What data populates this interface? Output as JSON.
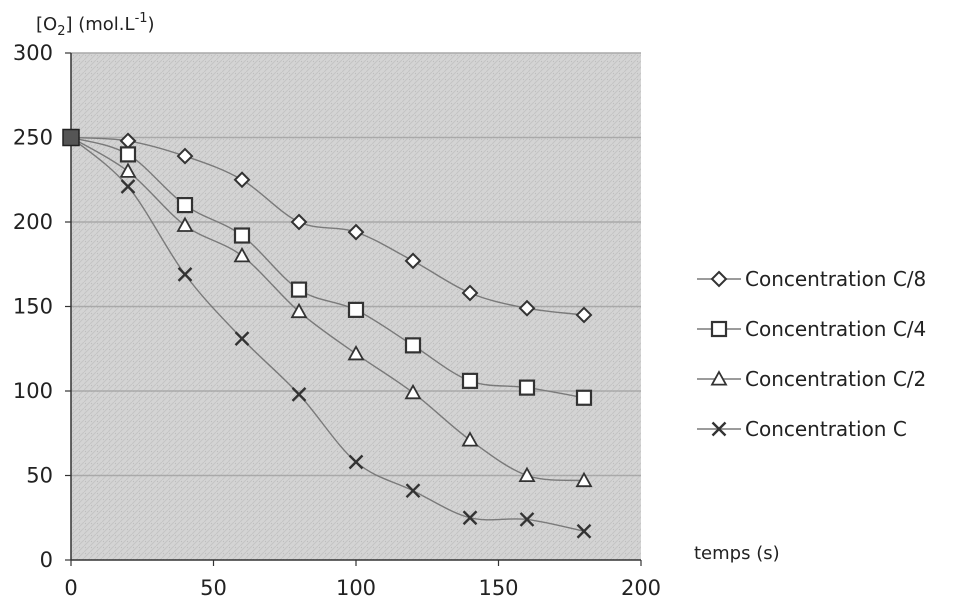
{
  "chart_data": {
    "type": "line",
    "y_title_main": "[O",
    "y_title_sub": "2",
    "y_title_rest": "] (mol.L",
    "y_title_sup": "-1",
    "y_title_end": ")",
    "xlabel": "temps (s)",
    "xlim": [
      0,
      200
    ],
    "ylim": [
      0,
      300
    ],
    "x_ticks": [
      "0",
      "50",
      "100",
      "150",
      "200"
    ],
    "y_ticks": [
      "0",
      "50",
      "100",
      "150",
      "200",
      "250",
      "300"
    ],
    "grid": "horizontal",
    "legend_position": "right",
    "x": [
      0,
      20,
      40,
      60,
      80,
      100,
      120,
      140,
      160,
      180
    ],
    "series": [
      {
        "name": "Concentration C/8",
        "marker": "diamond",
        "values": [
          250,
          248,
          239,
          225,
          200,
          194,
          177,
          158,
          149,
          145
        ]
      },
      {
        "name": "Concentration C/4",
        "marker": "square",
        "values": [
          250,
          240,
          210,
          192,
          160,
          148,
          127,
          106,
          102,
          96
        ]
      },
      {
        "name": "Concentration C/2",
        "marker": "triangle",
        "values": [
          250,
          230,
          198,
          180,
          147,
          122,
          99,
          71,
          50,
          47
        ]
      },
      {
        "name": "Concentration C",
        "marker": "cross",
        "values": [
          250,
          221,
          169,
          131,
          98,
          58,
          41,
          25,
          24,
          17
        ]
      }
    ],
    "colors": {
      "plot_bg": "#d6d6d6",
      "grid": "#a9a9a9",
      "line": "#7a7a7a",
      "marker": "#333333",
      "start_point": "#555555"
    }
  }
}
